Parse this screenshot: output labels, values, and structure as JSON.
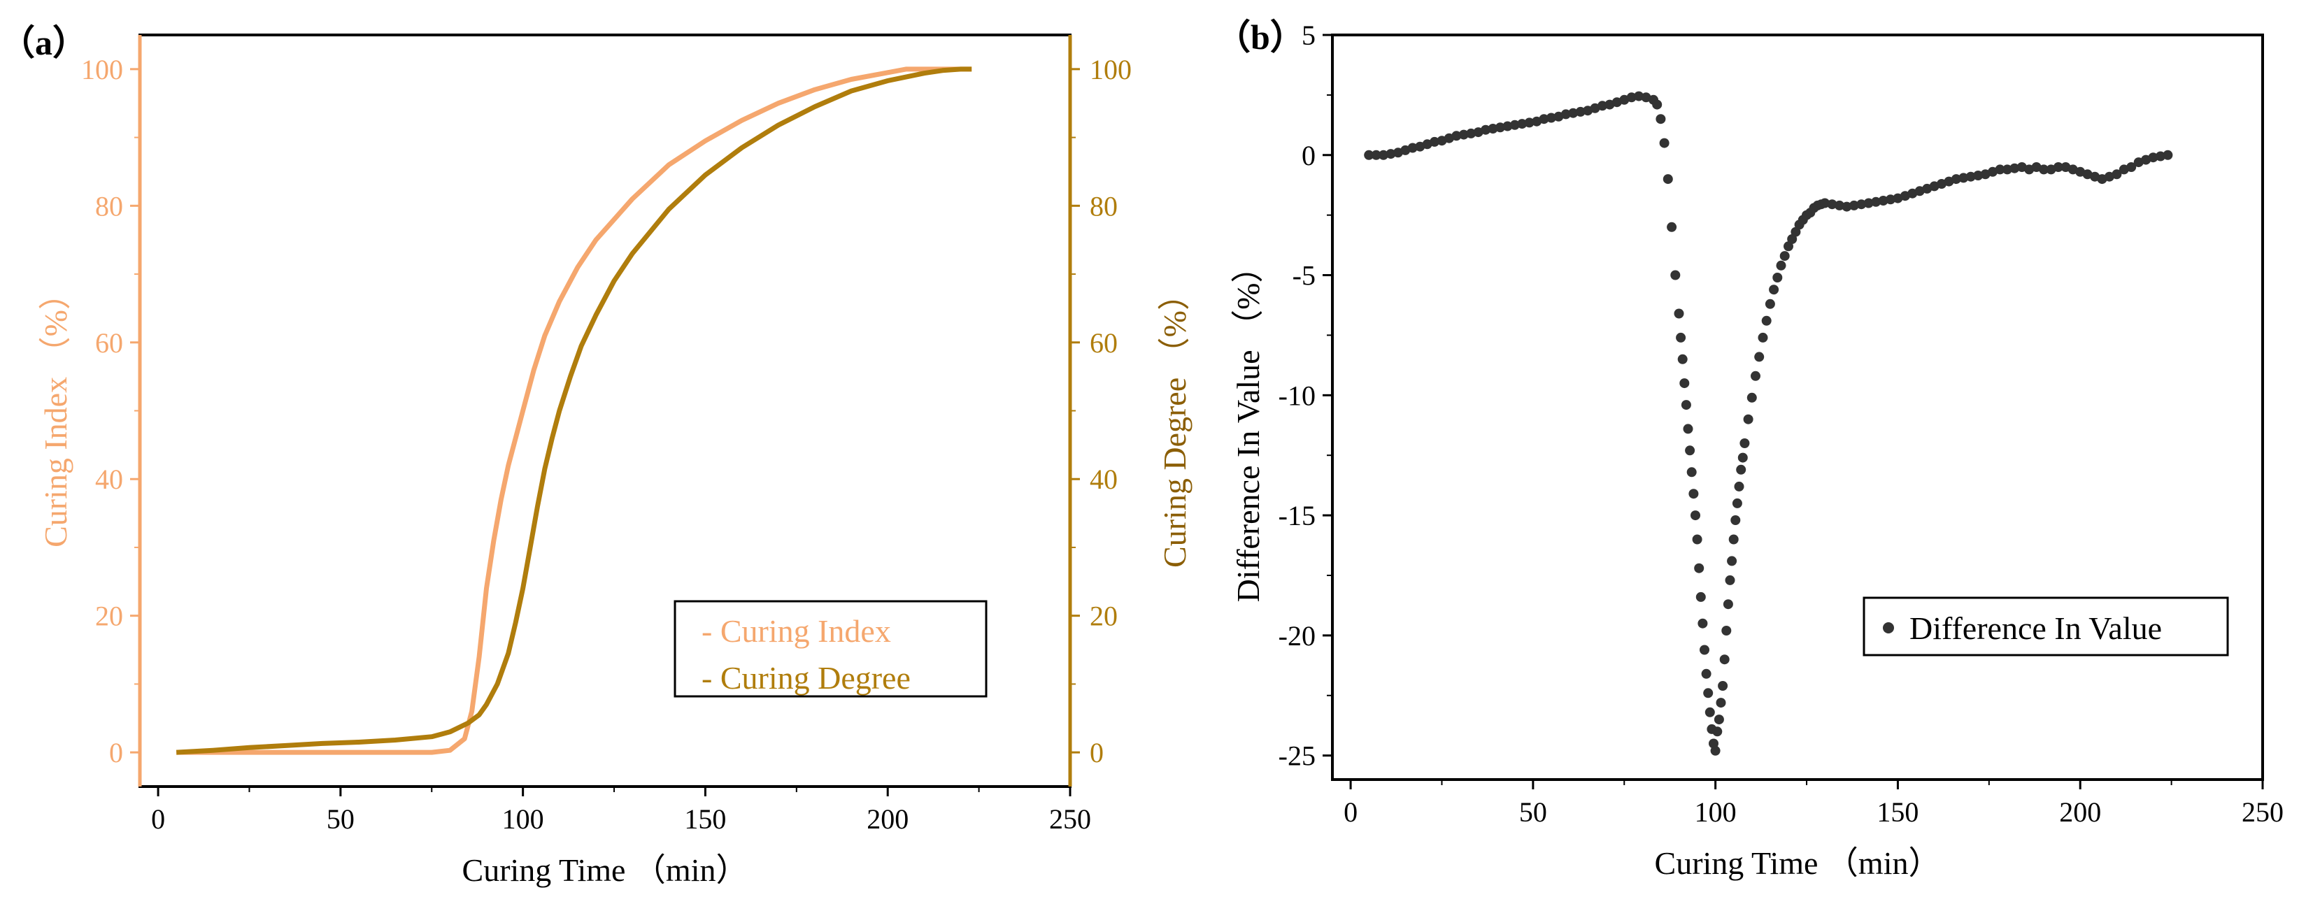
{
  "figure": {
    "panel_a_label": "（a）",
    "panel_b_label": "（b）"
  },
  "colors": {
    "curing_index": "#f5a76e",
    "curing_degree": "#b07d0c",
    "difference": "#333333"
  },
  "chart_data": [
    {
      "type": "line",
      "panel": "a",
      "title": "",
      "xlabel": "Curing Time （min）",
      "ylabel_left": "Curing Index （%）",
      "ylabel_right": "Curing Degree （%）",
      "xlim": [
        -5,
        250
      ],
      "ylim": [
        -5,
        105
      ],
      "xticks": [
        0,
        50,
        100,
        150,
        200,
        250
      ],
      "xtick_labels": [
        "0",
        "50",
        "100",
        "150",
        "200",
        "250"
      ],
      "yticks": [
        0,
        20,
        40,
        60,
        80,
        100
      ],
      "ytick_labels": [
        "0",
        "20",
        "40",
        "60",
        "80",
        "100"
      ],
      "legend_position": "bottom-right",
      "series": [
        {
          "name": "Curing Index",
          "legend_label": "- Curing Index",
          "x": [
            5,
            20,
            40,
            60,
            75,
            80,
            84,
            86,
            88,
            90,
            92,
            94,
            96,
            98,
            100,
            103,
            106,
            110,
            115,
            120,
            125,
            130,
            140,
            150,
            160,
            170,
            180,
            190,
            200,
            205,
            210,
            215,
            220,
            223
          ],
          "y": [
            0,
            0,
            0,
            0,
            0,
            0.3,
            2,
            6,
            14,
            24,
            31,
            37,
            42,
            46,
            50,
            56,
            61,
            66,
            71,
            75,
            78,
            81,
            86,
            89.5,
            92.5,
            95,
            97,
            98.5,
            99.5,
            100,
            100,
            100,
            100,
            100
          ]
        },
        {
          "name": "Curing Degree",
          "legend_label": "- Curing Degree",
          "x": [
            5,
            15,
            25,
            35,
            45,
            55,
            65,
            75,
            80,
            85,
            88,
            90,
            93,
            96,
            98,
            100,
            102,
            104,
            106,
            108,
            110,
            113,
            116,
            120,
            125,
            130,
            140,
            150,
            160,
            170,
            180,
            190,
            200,
            210,
            215,
            220,
            223
          ],
          "y": [
            0,
            0.3,
            0.7,
            1,
            1.3,
            1.5,
            1.8,
            2.3,
            3,
            4.3,
            5.5,
            7,
            10,
            14.5,
            19,
            24,
            30,
            36,
            41.5,
            46,
            50,
            55,
            59.5,
            64,
            69,
            73,
            79.5,
            84.5,
            88.5,
            91.8,
            94.5,
            96.8,
            98.3,
            99.4,
            99.8,
            100,
            100
          ]
        }
      ]
    },
    {
      "type": "scatter",
      "panel": "b",
      "title": "",
      "xlabel": "Curing Time （min）",
      "ylabel": "Difference In Value （%）",
      "xlim": [
        -5,
        250
      ],
      "ylim": [
        -26,
        5
      ],
      "xticks": [
        0,
        50,
        100,
        150,
        200,
        250
      ],
      "xtick_labels": [
        "0",
        "50",
        "100",
        "150",
        "200",
        "250"
      ],
      "yticks": [
        5,
        0,
        -5,
        -10,
        -15,
        -20,
        -25
      ],
      "ytick_labels": [
        "5",
        "0",
        "-5",
        "-10",
        "-15",
        "-20",
        "-25"
      ],
      "legend_position": "bottom-right",
      "series": [
        {
          "name": "Difference In Value",
          "legend_label": "Difference In Value",
          "x": [
            5,
            7,
            9,
            11,
            13,
            15,
            17,
            19,
            21,
            23,
            25,
            27,
            29,
            31,
            33,
            35,
            37,
            39,
            41,
            43,
            45,
            47,
            49,
            51,
            53,
            55,
            57,
            59,
            61,
            63,
            65,
            67,
            69,
            71,
            73,
            75,
            77,
            79,
            81,
            83,
            84,
            85,
            86,
            87,
            88,
            89,
            90,
            90.5,
            91,
            91.5,
            92,
            92.5,
            93,
            93.5,
            94,
            94.5,
            95,
            95.5,
            96,
            96.5,
            97,
            97.5,
            98,
            98.5,
            99,
            99.5,
            100,
            100.5,
            101,
            101.5,
            102,
            102.5,
            103,
            103.5,
            104,
            104.5,
            105,
            105.5,
            106,
            106.5,
            107,
            107.5,
            108,
            109,
            110,
            111,
            112,
            113,
            114,
            115,
            116,
            117,
            118,
            119,
            120,
            121,
            122,
            123,
            124,
            125,
            126,
            127,
            128,
            129,
            130,
            132,
            134,
            136,
            138,
            140,
            142,
            144,
            146,
            148,
            150,
            152,
            154,
            156,
            158,
            160,
            162,
            164,
            166,
            168,
            170,
            172,
            174,
            176,
            178,
            180,
            182,
            184,
            186,
            188,
            190,
            192,
            194,
            196,
            198,
            200,
            202,
            204,
            206,
            208,
            210,
            212,
            214,
            216,
            218,
            220,
            222,
            224
          ],
          "y": [
            0,
            0,
            0,
            0.05,
            0.1,
            0.2,
            0.3,
            0.35,
            0.45,
            0.55,
            0.6,
            0.7,
            0.8,
            0.85,
            0.9,
            0.95,
            1.05,
            1.1,
            1.15,
            1.2,
            1.25,
            1.3,
            1.35,
            1.4,
            1.5,
            1.55,
            1.6,
            1.7,
            1.75,
            1.8,
            1.85,
            1.95,
            2.05,
            2.1,
            2.2,
            2.3,
            2.4,
            2.45,
            2.4,
            2.3,
            2.1,
            1.5,
            0.5,
            -1,
            -3,
            -5,
            -6.6,
            -7.6,
            -8.5,
            -9.5,
            -10.4,
            -11.4,
            -12.3,
            -13.2,
            -14.1,
            -15,
            -16,
            -17.2,
            -18.4,
            -19.5,
            -20.6,
            -21.6,
            -22.4,
            -23.2,
            -23.9,
            -24.5,
            -24.8,
            -24,
            -23.5,
            -22.8,
            -22.1,
            -21,
            -19.8,
            -18.7,
            -17.7,
            -16.9,
            -16,
            -15.2,
            -14.5,
            -13.8,
            -13.1,
            -12.6,
            -12,
            -11,
            -10.1,
            -9.2,
            -8.4,
            -7.6,
            -6.9,
            -6.2,
            -5.6,
            -5.1,
            -4.6,
            -4.2,
            -3.8,
            -3.5,
            -3.2,
            -2.9,
            -2.7,
            -2.5,
            -2.4,
            -2.2,
            -2.1,
            -2.05,
            -2,
            -2.05,
            -2.1,
            -2.15,
            -2.1,
            -2.05,
            -2,
            -1.95,
            -1.9,
            -1.85,
            -1.8,
            -1.7,
            -1.6,
            -1.5,
            -1.4,
            -1.3,
            -1.2,
            -1.1,
            -1,
            -0.95,
            -0.9,
            -0.85,
            -0.8,
            -0.7,
            -0.6,
            -0.6,
            -0.55,
            -0.5,
            -0.6,
            -0.5,
            -0.6,
            -0.6,
            -0.5,
            -0.5,
            -0.6,
            -0.7,
            -0.8,
            -0.9,
            -1,
            -0.9,
            -0.8,
            -0.6,
            -0.5,
            -0.3,
            -0.2,
            -0.1,
            -0.05,
            0
          ]
        }
      ]
    }
  ]
}
